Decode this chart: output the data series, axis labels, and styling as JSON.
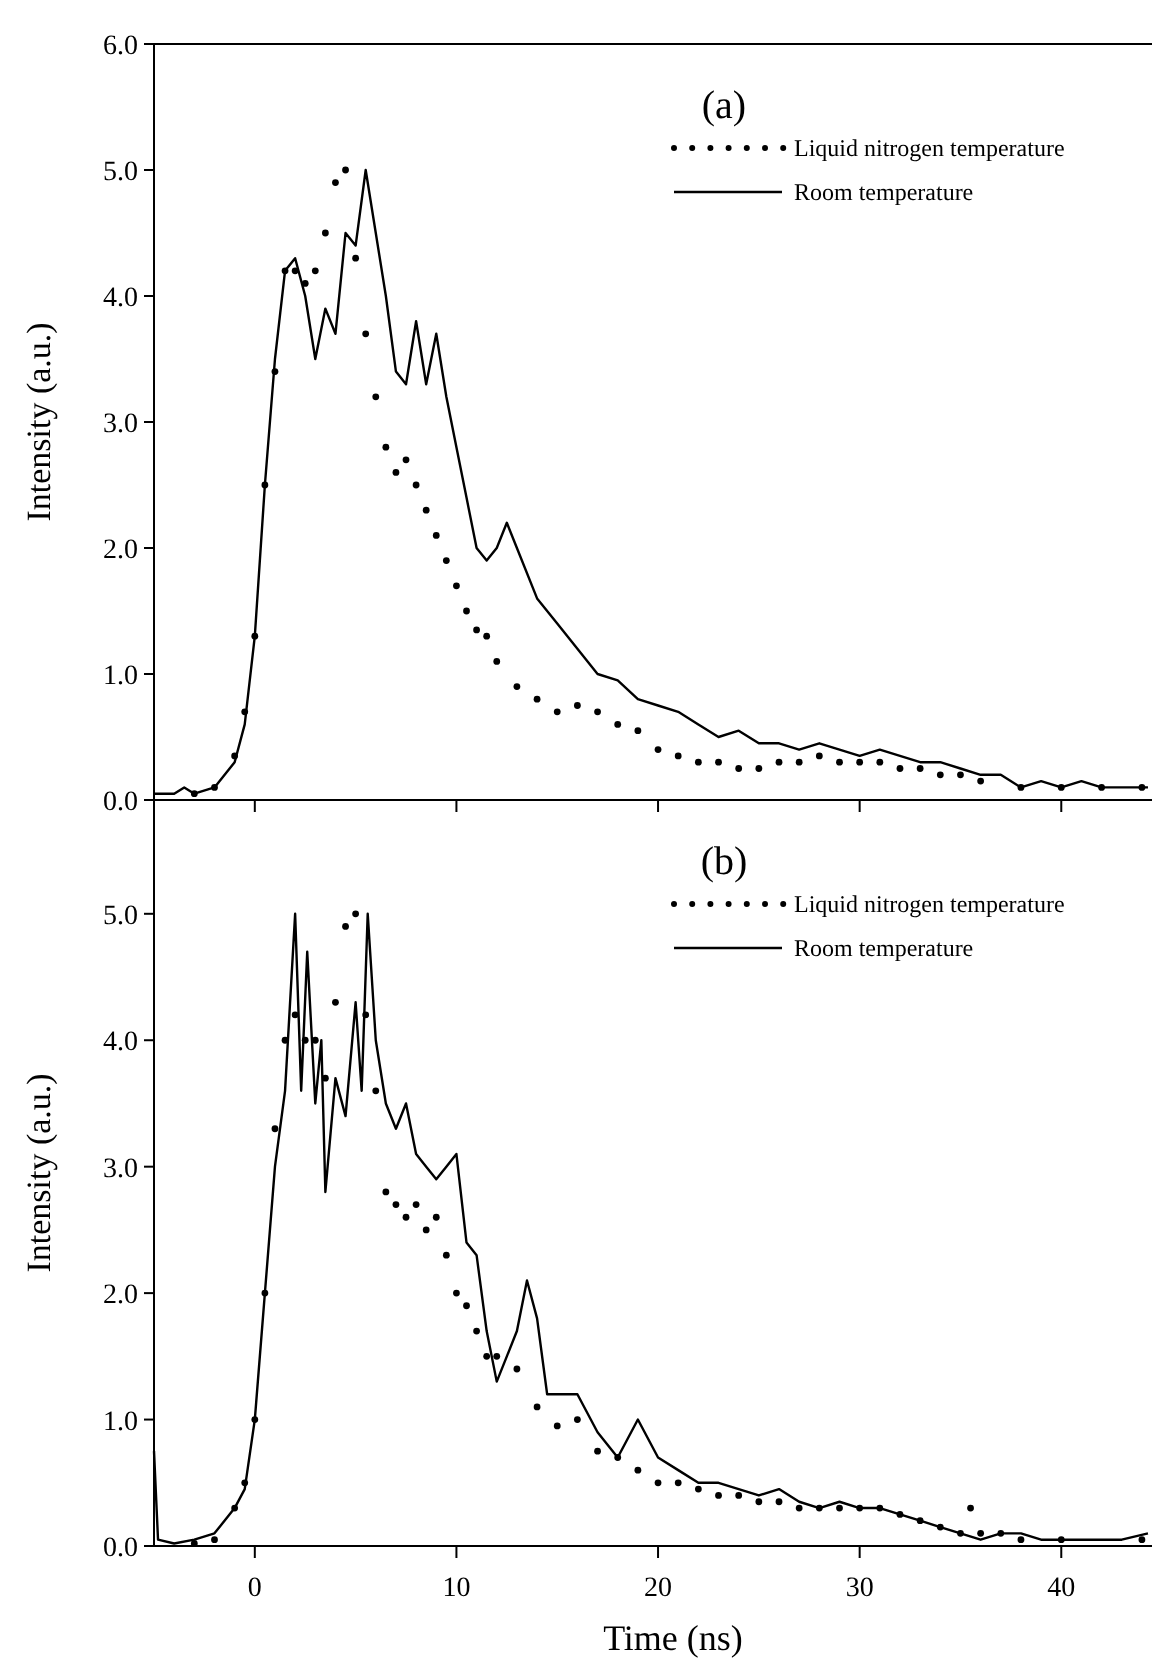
{
  "chart_data": [
    {
      "type": "line",
      "title": "(a)",
      "ylabel": "Intensity (a.u.)",
      "xlim": [
        -5,
        44.5
      ],
      "xticks": [
        {
          "value": 0,
          "label": null
        },
        {
          "value": 10,
          "label": null
        },
        {
          "value": 20,
          "label": null
        },
        {
          "value": 30,
          "label": null
        },
        {
          "value": 40,
          "label": null
        }
      ],
      "ylim": [
        0,
        6
      ],
      "yticks": [
        {
          "value": 0,
          "label": "0.0"
        },
        {
          "value": 1,
          "label": "1.0"
        },
        {
          "value": 2,
          "label": "2.0"
        },
        {
          "value": 3,
          "label": "3.0"
        },
        {
          "value": 4,
          "label": "4.0"
        },
        {
          "value": 5,
          "label": "5.0"
        },
        {
          "value": 6,
          "label": "6.0"
        }
      ],
      "tick_labels": "y",
      "legend": "top right",
      "series": [
        {
          "name": "Liquid nitrogen temperature",
          "type": "scatter",
          "marker": "circle",
          "color": "#000000",
          "x": [
            -3,
            -2,
            -1,
            -0.5,
            0,
            0.5,
            1,
            1.5,
            2,
            2.5,
            3,
            3.5,
            4,
            4.5,
            5,
            5.5,
            6,
            6.5,
            7,
            7.5,
            8,
            8.5,
            9,
            9.5,
            10,
            10.5,
            11,
            11.5,
            12,
            13,
            14,
            15,
            16,
            17,
            18,
            19,
            20,
            21,
            22,
            23,
            24,
            25,
            26,
            27,
            28,
            29,
            30,
            31,
            32,
            33,
            34,
            35,
            36,
            38,
            40,
            42,
            44
          ],
          "values": [
            0.05,
            0.1,
            0.35,
            0.7,
            1.3,
            2.5,
            3.4,
            4.2,
            4.2,
            4.1,
            4.2,
            4.5,
            4.9,
            5.0,
            4.3,
            3.7,
            3.2,
            2.8,
            2.6,
            2.7,
            2.5,
            2.3,
            2.1,
            1.9,
            1.7,
            1.5,
            1.35,
            1.3,
            1.1,
            0.9,
            0.8,
            0.7,
            0.75,
            0.7,
            0.6,
            0.55,
            0.4,
            0.35,
            0.3,
            0.3,
            0.25,
            0.25,
            0.3,
            0.3,
            0.35,
            0.3,
            0.3,
            0.3,
            0.25,
            0.25,
            0.2,
            0.2,
            0.15,
            0.1,
            0.1,
            0.1,
            0.1
          ]
        },
        {
          "name": "Room temperature",
          "type": "line",
          "line_style": "solid",
          "marker": "none",
          "color": "#000000",
          "x": [
            -5,
            -4,
            -3.5,
            -3,
            -2,
            -1,
            -0.5,
            0,
            0.5,
            1,
            1.5,
            2,
            2.5,
            3,
            3.5,
            4,
            4.5,
            5,
            5.5,
            6,
            6.5,
            7,
            7.5,
            8,
            8.5,
            9,
            9.5,
            10,
            10.5,
            11,
            11.5,
            12,
            12.5,
            13,
            14,
            15,
            16,
            17,
            18,
            19,
            20,
            21,
            22,
            23,
            24,
            25,
            26,
            27,
            28,
            29,
            30,
            31,
            32,
            33,
            34,
            35,
            36,
            37,
            38,
            39,
            40,
            41,
            42,
            43,
            44.3
          ],
          "values": [
            0.05,
            0.05,
            0.1,
            0.05,
            0.1,
            0.3,
            0.6,
            1.3,
            2.5,
            3.5,
            4.2,
            4.3,
            4.0,
            3.5,
            3.9,
            3.7,
            4.5,
            4.4,
            5.0,
            4.5,
            4.0,
            3.4,
            3.3,
            3.8,
            3.3,
            3.7,
            3.2,
            2.8,
            2.4,
            2.0,
            1.9,
            2.0,
            2.2,
            2.0,
            1.6,
            1.4,
            1.2,
            1.0,
            0.95,
            0.8,
            0.75,
            0.7,
            0.6,
            0.5,
            0.55,
            0.45,
            0.45,
            0.4,
            0.45,
            0.4,
            0.35,
            0.4,
            0.35,
            0.3,
            0.3,
            0.25,
            0.2,
            0.2,
            0.1,
            0.15,
            0.1,
            0.15,
            0.1,
            0.1,
            0.1
          ]
        }
      ]
    },
    {
      "type": "line",
      "title": "(b)",
      "xlabel": "Time (ns)",
      "ylabel": "Intensity (a.u.)",
      "xlim": [
        -5,
        44.5
      ],
      "xticks": [
        0,
        10,
        20,
        30,
        40
      ],
      "ylim": [
        0,
        5.9
      ],
      "yticks": [
        {
          "value": 0,
          "label": "0.0"
        },
        {
          "value": 1,
          "label": "1.0"
        },
        {
          "value": 2,
          "label": "2.0"
        },
        {
          "value": 3,
          "label": "3.0"
        },
        {
          "value": 4,
          "label": "4.0"
        },
        {
          "value": 5,
          "label": "5.0"
        }
      ],
      "legend": "top right",
      "series": [
        {
          "name": "Liquid nitrogen temperature",
          "type": "scatter",
          "marker": "circle",
          "color": "#000000",
          "x": [
            -3,
            -2,
            -1,
            -0.5,
            0,
            0.5,
            1,
            1.5,
            2,
            2.5,
            3,
            3.5,
            4,
            4.5,
            5,
            5.5,
            6,
            6.5,
            7,
            7.5,
            8,
            8.5,
            9,
            9.5,
            10,
            10.5,
            11,
            11.5,
            12,
            13,
            14,
            15,
            16,
            17,
            18,
            19,
            20,
            21,
            22,
            23,
            24,
            25,
            26,
            27,
            28,
            29,
            30,
            31,
            32,
            33,
            34,
            35,
            35.5,
            36,
            37,
            38,
            40,
            44
          ],
          "values": [
            0.02,
            0.05,
            0.3,
            0.5,
            1.0,
            2.0,
            3.3,
            4.0,
            4.2,
            4.0,
            4.0,
            3.7,
            4.3,
            4.9,
            5.0,
            4.2,
            3.6,
            2.8,
            2.7,
            2.6,
            2.7,
            2.5,
            2.6,
            2.3,
            2.0,
            1.9,
            1.7,
            1.5,
            1.5,
            1.4,
            1.1,
            0.95,
            1.0,
            0.75,
            0.7,
            0.6,
            0.5,
            0.5,
            0.45,
            0.4,
            0.4,
            0.35,
            0.35,
            0.3,
            0.3,
            0.3,
            0.3,
            0.3,
            0.25,
            0.2,
            0.15,
            0.1,
            0.3,
            0.1,
            0.1,
            0.05,
            0.05,
            0.05
          ]
        },
        {
          "name": "Room temperature",
          "type": "line",
          "line_style": "solid",
          "marker": "none",
          "color": "#000000",
          "x": [
            -5,
            -4.8,
            -4,
            -3,
            -2,
            -1,
            -0.5,
            0,
            0.5,
            1,
            1.5,
            2,
            2.3,
            2.6,
            3,
            3.3,
            3.5,
            4,
            4.5,
            5,
            5.3,
            5.6,
            6,
            6.5,
            7,
            7.5,
            8,
            8.5,
            9,
            9.5,
            10,
            10.5,
            11,
            11.5,
            12,
            12.5,
            13,
            13.5,
            14,
            14.5,
            15,
            16,
            17,
            18,
            19,
            20,
            21,
            22,
            23,
            24,
            25,
            26,
            27,
            28,
            29,
            30,
            31,
            32,
            33,
            34,
            35,
            36,
            37,
            38,
            39,
            40,
            41,
            42,
            43,
            44.3
          ],
          "values": [
            0.75,
            0.05,
            0.02,
            0.05,
            0.1,
            0.3,
            0.45,
            1.0,
            2.0,
            3.0,
            3.6,
            5.0,
            3.6,
            4.7,
            3.5,
            4.0,
            2.8,
            3.7,
            3.4,
            4.3,
            3.6,
            5.0,
            4.0,
            3.5,
            3.3,
            3.5,
            3.1,
            3.0,
            2.9,
            3.0,
            3.1,
            2.4,
            2.3,
            1.7,
            1.3,
            1.5,
            1.7,
            2.1,
            1.8,
            1.2,
            1.2,
            1.2,
            0.9,
            0.7,
            1.0,
            0.7,
            0.6,
            0.5,
            0.5,
            0.45,
            0.4,
            0.45,
            0.35,
            0.3,
            0.35,
            0.3,
            0.3,
            0.25,
            0.2,
            0.15,
            0.1,
            0.05,
            0.1,
            0.1,
            0.05,
            0.05,
            0.05,
            0.05,
            0.05,
            0.1
          ]
        }
      ]
    }
  ]
}
